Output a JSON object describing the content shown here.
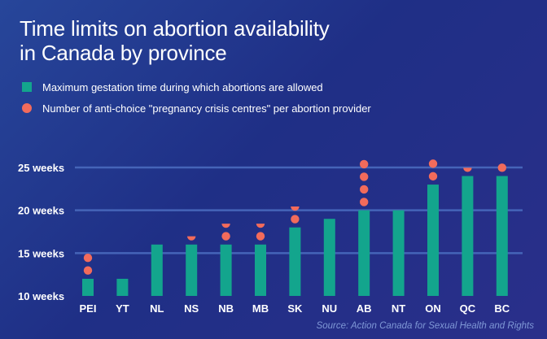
{
  "title_line1": "Time limits on abortion availability",
  "title_line2": "in Canada by province",
  "legend": [
    {
      "label": "Maximum gestation time during which abortions are allowed",
      "marker": "bar"
    },
    {
      "label": "Number of anti-choice \"pregnancy crisis centres\" per abortion provider",
      "marker": "dot"
    }
  ],
  "source": "Source: Action Canada for Sexual Health and Rights",
  "colors": {
    "bar": "#13a58d",
    "dot": "#f26b5b",
    "gridline": "#4564b8",
    "text": "#ffffff",
    "source_text": "#7f98d6"
  },
  "chart_data": {
    "type": "bar",
    "categories": [
      "PEI",
      "YT",
      "NL",
      "NS",
      "NB",
      "MB",
      "SK",
      "NU",
      "AB",
      "NT",
      "ON",
      "QC",
      "BC"
    ],
    "series": [
      {
        "name": "Maximum gestation time during which abortions are allowed",
        "type": "bar",
        "values": [
          12,
          12,
          16,
          16,
          16,
          16,
          18,
          19,
          20,
          20,
          23,
          24,
          24
        ]
      },
      {
        "name": "Number of anti-choice \"pregnancy crisis centres\" per abortion provider",
        "type": "dots",
        "values": [
          2,
          0,
          0,
          0.5,
          1.5,
          1.5,
          1.5,
          0,
          4,
          0,
          2,
          0.5,
          1
        ]
      }
    ],
    "yticks": [
      {
        "value": 10,
        "label": "10 weeks"
      },
      {
        "value": 15,
        "label": "15 weeks"
      },
      {
        "value": 20,
        "label": "20 weeks"
      },
      {
        "value": 25,
        "label": "25 weeks"
      }
    ],
    "ylim": [
      10,
      25
    ],
    "ylabel": "",
    "xlabel": "",
    "grid": true
  }
}
